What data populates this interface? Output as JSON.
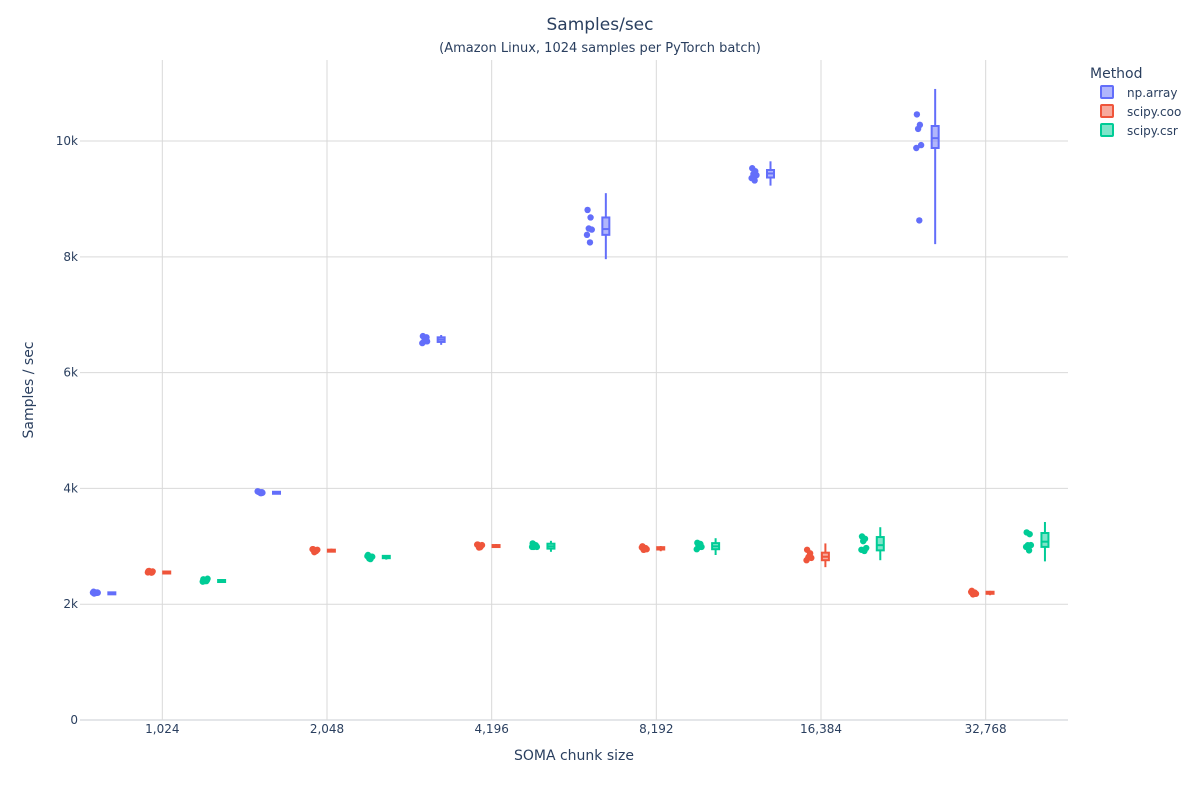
{
  "chart_data": {
    "type": "box",
    "title": "Samples/sec",
    "subtitle": "(Amazon Linux, 1024 samples per PyTorch batch)",
    "xlabel": "SOMA chunk size",
    "ylabel": "Samples / sec",
    "categories": [
      "1,024",
      "2,048",
      "4,196",
      "8,192",
      "16,384",
      "32,768"
    ],
    "ylim": [
      0,
      11400
    ],
    "yticks": [
      0,
      2000,
      4000,
      6000,
      8000,
      10000
    ],
    "ytick_labels": [
      "0",
      "2k",
      "4k",
      "6k",
      "8k",
      "10k"
    ],
    "grid": true,
    "legend": {
      "title": "Method",
      "position": "top-right"
    },
    "series": [
      {
        "name": "np.array",
        "color": "#636efa",
        "points": [
          [
            2205,
            2195,
            2215,
            2188,
            2200,
            2210,
            2192,
            2185
          ],
          [
            3935,
            3920,
            3945,
            3915,
            3950,
            3930,
            3925,
            3940
          ],
          [
            6620,
            6580,
            6550,
            6530,
            6510,
            6560,
            6600
          ],
          [
            8800,
            8680,
            8500,
            8460,
            8380,
            8260
          ],
          [
            9520,
            9480,
            9440,
            9400,
            9360,
            9330
          ],
          [
            10450,
            10280,
            10220,
            9920,
            9880,
            8640
          ]
        ],
        "boxes": [
          {
            "min": 2175,
            "q1": 2185,
            "median": 2195,
            "q3": 2205,
            "max": 2215
          },
          {
            "min": 3900,
            "q1": 3920,
            "median": 3932,
            "q3": 3942,
            "max": 3955
          },
          {
            "min": 6480,
            "q1": 6530,
            "median": 6570,
            "q3": 6610,
            "max": 6650
          },
          {
            "min": 7960,
            "q1": 8380,
            "median": 8480,
            "q3": 8680,
            "max": 9100
          },
          {
            "min": 9230,
            "q1": 9370,
            "median": 9440,
            "q3": 9500,
            "max": 9650
          },
          {
            "min": 8220,
            "q1": 9880,
            "median": 10050,
            "q3": 10260,
            "max": 10900
          }
        ]
      },
      {
        "name": "scipy.coo",
        "color": "#ef553b",
        "points": [
          [
            2560,
            2545,
            2570,
            2555,
            2550,
            2565,
            2540,
            2575
          ],
          [
            2940,
            2920,
            2910,
            2930,
            2950,
            2925
          ],
          [
            3020,
            3000,
            2990,
            3010,
            3030,
            2995
          ],
          [
            2990,
            2970,
            2950,
            2940,
            2980,
            2960
          ],
          [
            2930,
            2880,
            2820,
            2790,
            2760,
            2850
          ],
          [
            2220,
            2200,
            2180,
            2170,
            2210,
            2190
          ]
        ],
        "boxes": [
          {
            "min": 2530,
            "q1": 2545,
            "median": 2555,
            "q3": 2565,
            "max": 2580
          },
          {
            "min": 2895,
            "q1": 2915,
            "median": 2928,
            "q3": 2942,
            "max": 2960
          },
          {
            "min": 2975,
            "q1": 2995,
            "median": 3008,
            "q3": 3022,
            "max": 3040
          },
          {
            "min": 2915,
            "q1": 2945,
            "median": 2962,
            "q3": 2985,
            "max": 3005
          },
          {
            "min": 2640,
            "q1": 2760,
            "median": 2820,
            "q3": 2890,
            "max": 3050
          },
          {
            "min": 2155,
            "q1": 2180,
            "median": 2200,
            "q3": 2215,
            "max": 2230
          }
        ]
      },
      {
        "name": "scipy.csr",
        "color": "#00cc96",
        "points": [
          [
            2420,
            2400,
            2410,
            2430,
            2390,
            2415,
            2405
          ],
          [
            2840,
            2820,
            2800,
            2810,
            2830,
            2790
          ],
          [
            3040,
            3020,
            3000,
            2980,
            2990,
            3010
          ],
          [
            3050,
            3040,
            3020,
            2980,
            2950,
            3000
          ],
          [
            3160,
            3130,
            3100,
            2960,
            2940,
            2930
          ],
          [
            3230,
            3210,
            3030,
            3010,
            2990,
            2940
          ]
        ],
        "boxes": [
          {
            "min": 2375,
            "q1": 2395,
            "median": 2405,
            "q3": 2418,
            "max": 2435
          },
          {
            "min": 2770,
            "q1": 2795,
            "median": 2815,
            "q3": 2835,
            "max": 2850
          },
          {
            "min": 2905,
            "q1": 2960,
            "median": 3000,
            "q3": 3045,
            "max": 3095
          },
          {
            "min": 2850,
            "q1": 2950,
            "median": 3000,
            "q3": 3055,
            "max": 3140
          },
          {
            "min": 2760,
            "q1": 2930,
            "median": 3020,
            "q3": 3160,
            "max": 3330
          },
          {
            "min": 2740,
            "q1": 2990,
            "median": 3080,
            "q3": 3230,
            "max": 3420
          }
        ]
      }
    ]
  }
}
